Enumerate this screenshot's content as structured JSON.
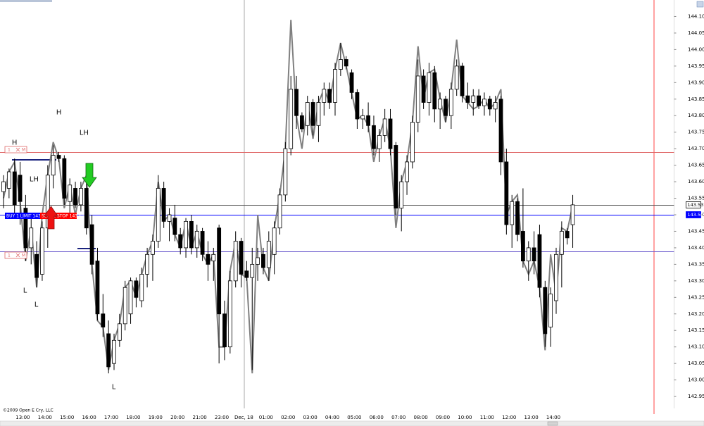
{
  "chart_data": {
    "type": "candlestick",
    "categories": [
      null,
      null,
      null,
      null,
      "13:00",
      null,
      null,
      null,
      "14:00",
      null,
      null,
      null,
      "15:00",
      null,
      null,
      null,
      "16:00",
      null,
      null,
      null,
      "17:00",
      null,
      null,
      null,
      "18:00",
      null,
      null,
      null,
      "19:00",
      null,
      null,
      null,
      "20:00",
      null,
      null,
      null,
      "21:00",
      null,
      null,
      null,
      "23:00",
      null,
      null,
      null,
      "Dec, 18",
      null,
      null,
      null,
      "01:00",
      null,
      null,
      null,
      "02:00",
      null,
      null,
      null,
      "03:00",
      null,
      null,
      null,
      "04:00",
      null,
      null,
      null,
      "05:00",
      null,
      null,
      null,
      "06:00",
      null,
      null,
      null,
      "07:00",
      null,
      null,
      null,
      "08:00",
      null,
      null,
      null,
      "09:00",
      null,
      null,
      null,
      "10:00",
      null,
      null,
      null,
      "11:00",
      null,
      null,
      null,
      "12:00",
      null,
      null,
      null,
      "13:00",
      null,
      null,
      null,
      "14:00",
      null,
      null,
      null
    ],
    "open": [
      143.57,
      143.58,
      143.63,
      143.62,
      143.52,
      143.4,
      143.38,
      143.32,
      143.46,
      143.62,
      143.68,
      143.67,
      143.54,
      143.58,
      143.53,
      143.58,
      143.47,
      143.36,
      143.2,
      143.14,
      143.05,
      143.12,
      143.17,
      143.2,
      143.3,
      143.24,
      143.32,
      143.38,
      143.42,
      143.58,
      143.48,
      143.49,
      143.44,
      143.4,
      143.48,
      143.4,
      143.45,
      143.38,
      143.36,
      143.46,
      143.2,
      143.1,
      143.3,
      143.42,
      143.33,
      143.31,
      143.35,
      143.38,
      143.34,
      143.38,
      143.46,
      143.56,
      143.7,
      143.88,
      143.8,
      143.77,
      143.84,
      143.77,
      143.84,
      143.88,
      143.84,
      143.94,
      143.97,
      143.93,
      143.87,
      143.79,
      143.8,
      143.77,
      143.7,
      143.74,
      143.79,
      143.71,
      143.52,
      143.6,
      143.66,
      143.78,
      143.92,
      143.84,
      143.93,
      143.82,
      143.85,
      143.8,
      143.88,
      143.95,
      143.86,
      143.84,
      143.86,
      143.83,
      143.85,
      143.82,
      143.85,
      143.66,
      143.47,
      143.54,
      143.45,
      143.36,
      143.4,
      143.44,
      143.28,
      143.16,
      143.24,
      143.38,
      143.45,
      143.47
    ],
    "high": [
      143.62,
      143.64,
      143.67,
      143.66,
      143.56,
      143.5,
      143.42,
      143.48,
      143.65,
      143.71,
      143.69,
      143.68,
      143.61,
      143.6,
      143.6,
      143.63,
      143.5,
      143.4,
      143.26,
      143.18,
      143.14,
      143.2,
      143.3,
      143.31,
      143.31,
      143.34,
      143.4,
      143.44,
      143.62,
      143.6,
      143.52,
      143.53,
      143.46,
      143.49,
      143.5,
      143.47,
      143.46,
      143.42,
      143.4,
      143.47,
      143.24,
      143.33,
      143.45,
      143.43,
      143.36,
      143.4,
      143.4,
      143.4,
      143.45,
      143.48,
      143.58,
      143.72,
      143.92,
      143.92,
      143.81,
      143.86,
      143.85,
      143.86,
      143.9,
      143.9,
      143.96,
      144.02,
      143.98,
      143.94,
      143.88,
      143.82,
      143.84,
      143.8,
      143.76,
      143.82,
      143.82,
      143.72,
      143.62,
      143.68,
      143.8,
      143.97,
      143.94,
      143.96,
      143.95,
      143.87,
      143.86,
      143.9,
      143.97,
      143.96,
      143.9,
      143.88,
      143.88,
      143.87,
      143.86,
      143.86,
      143.86,
      143.7,
      143.56,
      143.55,
      143.58,
      143.42,
      143.45,
      143.47,
      143.3,
      143.28,
      143.4,
      143.48,
      143.46,
      143.56
    ],
    "low": [
      143.52,
      143.55,
      143.5,
      143.47,
      143.36,
      143.35,
      143.28,
      143.3,
      143.4,
      143.58,
      143.66,
      143.53,
      143.5,
      143.52,
      143.51,
      143.44,
      143.32,
      143.18,
      143.13,
      143.02,
      143.03,
      143.1,
      143.15,
      143.17,
      143.22,
      143.22,
      143.28,
      143.3,
      143.4,
      143.46,
      143.42,
      143.42,
      143.38,
      143.37,
      143.38,
      143.37,
      143.36,
      143.3,
      143.3,
      143.05,
      143.06,
      143.08,
      143.28,
      143.28,
      143.3,
      143.03,
      143.3,
      143.32,
      143.3,
      143.32,
      143.44,
      143.54,
      143.68,
      143.76,
      143.75,
      143.74,
      143.74,
      143.72,
      143.8,
      143.82,
      143.8,
      143.92,
      143.94,
      143.85,
      143.76,
      143.76,
      143.75,
      143.68,
      143.66,
      143.72,
      143.68,
      143.5,
      143.45,
      143.56,
      143.64,
      143.75,
      143.82,
      143.8,
      143.78,
      143.76,
      143.78,
      143.76,
      143.86,
      143.84,
      143.82,
      143.8,
      143.82,
      143.8,
      143.8,
      143.78,
      143.62,
      143.44,
      143.4,
      143.42,
      143.34,
      143.3,
      143.32,
      143.25,
      143.1,
      143.1,
      143.2,
      143.28,
      143.41,
      143.4
    ],
    "close": [
      143.6,
      143.63,
      143.53,
      143.54,
      143.4,
      143.46,
      143.31,
      143.46,
      143.62,
      143.68,
      143.67,
      143.55,
      143.59,
      143.53,
      143.58,
      143.46,
      143.35,
      143.2,
      143.16,
      143.04,
      143.12,
      143.17,
      143.28,
      143.3,
      143.25,
      143.32,
      143.38,
      143.42,
      143.58,
      143.48,
      143.5,
      143.44,
      143.4,
      143.48,
      143.4,
      143.45,
      143.38,
      143.35,
      143.38,
      143.2,
      143.1,
      143.3,
      143.42,
      143.32,
      143.31,
      143.35,
      143.37,
      143.34,
      143.42,
      143.46,
      143.56,
      143.7,
      143.88,
      143.8,
      143.76,
      143.84,
      143.77,
      143.84,
      143.88,
      143.84,
      143.94,
      143.97,
      143.95,
      143.87,
      143.79,
      143.8,
      143.77,
      143.7,
      143.74,
      143.79,
      143.7,
      143.52,
      143.6,
      143.66,
      143.78,
      143.92,
      143.84,
      143.93,
      143.82,
      143.85,
      143.8,
      143.88,
      143.95,
      143.86,
      143.84,
      143.86,
      143.83,
      143.85,
      143.82,
      143.84,
      143.66,
      143.47,
      143.54,
      143.44,
      143.36,
      143.4,
      143.36,
      143.28,
      143.14,
      143.26,
      143.38,
      143.45,
      143.43,
      143.53
    ],
    "up_color": "#ffffff",
    "down_color": "#000000",
    "overlay": {
      "color": "#808080",
      "values": [
        143.55,
        143.63,
        143.66,
        143.54,
        143.36,
        143.46,
        143.28,
        143.5,
        143.62,
        143.72,
        143.67,
        143.52,
        143.59,
        143.5,
        143.58,
        143.62,
        143.35,
        143.18,
        143.16,
        143.03,
        143.12,
        143.17,
        143.28,
        143.3,
        143.25,
        143.32,
        143.38,
        143.42,
        143.6,
        143.48,
        143.5,
        143.44,
        143.4,
        143.48,
        143.4,
        143.45,
        143.38,
        143.35,
        143.38,
        143.1,
        143.1,
        143.33,
        143.42,
        143.32,
        143.31,
        143.02,
        143.5,
        143.34,
        143.3,
        143.46,
        143.56,
        143.7,
        144.09,
        143.8,
        143.7,
        143.84,
        143.73,
        143.84,
        143.88,
        143.84,
        143.94,
        144.02,
        143.95,
        143.87,
        143.79,
        143.8,
        143.77,
        143.66,
        143.74,
        143.79,
        143.7,
        143.46,
        143.6,
        143.66,
        143.78,
        144.01,
        143.85,
        143.93,
        143.94,
        143.85,
        143.78,
        143.88,
        144.03,
        143.86,
        143.84,
        143.82,
        143.83,
        143.85,
        143.82,
        143.84,
        143.88,
        143.5,
        143.54,
        143.56,
        143.36,
        143.32,
        143.36,
        143.28,
        143.09,
        143.38,
        143.26,
        143.46,
        143.45,
        143.53
      ]
    },
    "ylim": [
      142.915,
      144.15
    ],
    "yticks": [
      142.95,
      {
        "value": 143.0,
        "label": "143.00"
      },
      143.05,
      {
        "value": 143.1,
        "label": "143.10"
      },
      143.15,
      {
        "value": 143.2,
        "label": "143.20"
      },
      143.25,
      {
        "value": 143.3,
        "label": "143.30"
      },
      143.35,
      {
        "value": 143.4,
        "label": "143.40"
      },
      143.45,
      {
        "value": 143.5,
        "label": "143.50"
      },
      143.55,
      {
        "value": 143.6,
        "label": "143.60"
      },
      143.65,
      {
        "value": 143.7,
        "label": "143.70"
      },
      143.75,
      {
        "value": 143.8,
        "label": "143.80"
      },
      143.85,
      {
        "value": 143.9,
        "label": "143.90"
      },
      143.95,
      {
        "value": 144.0,
        "label": "144.00"
      },
      144.05,
      {
        "value": 144.1,
        "label": "144.10"
      }
    ],
    "levels": [
      {
        "value": 143.69,
        "color": "#e06666"
      },
      {
        "value": 143.53,
        "color": "#555555"
      },
      {
        "value": 143.5,
        "color": "#0000ff"
      },
      {
        "value": 143.39,
        "color": "#6a5acd"
      }
    ],
    "price_markers": [
      {
        "value": 143.53,
        "color": "#000000"
      },
      {
        "value": 143.5,
        "label": "143.50",
        "color": "#0000ff"
      }
    ],
    "orders": [
      {
        "label": "BUY 1 LIMIT 143.50",
        "color": "#0000ff"
      },
      {
        "label": "SELL 1 STOP 143.50",
        "color": "#ff0000"
      }
    ],
    "order_controls": [
      "1",
      "M"
    ],
    "annotations": [
      "H",
      "LH",
      "H",
      "LH",
      "L",
      "L",
      "L"
    ],
    "copyright": "©2009 Open E Cry, LLC"
  }
}
